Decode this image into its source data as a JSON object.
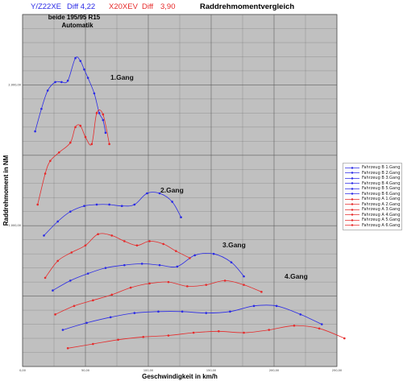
{
  "header": {
    "left_a": "Y/Z22XE",
    "left_b": "Diff 4,22",
    "mid_a": "X20XEV",
    "mid_b": "Diff",
    "mid_c": "3,90",
    "title": "Raddrehmomentvergleich"
  },
  "colors": {
    "blue": "#2a2ae6",
    "red": "#e62a2a",
    "plot_bg": "#c0c0c0",
    "grid": "#555555"
  },
  "chart_data": {
    "type": "line",
    "title": "Raddrehmomentvergleich",
    "subtitle": "beide 195/95 R15\nAutomatik",
    "xlabel": "Geschwindigkeit in km/h",
    "ylabel": "Raddrehmoment in NM",
    "xlim": [
      0,
      250
    ],
    "ylim": [
      0,
      2500
    ],
    "xticks": [
      "0,00",
      "50,00",
      "100,00",
      "150,00",
      "200,00",
      "250,00"
    ],
    "yticks": [
      "1.000,00",
      "2.000,00"
    ],
    "grid": true,
    "legend_position": "right",
    "annotations": [
      "1.Gang",
      "2.Gang",
      "3.Gang",
      "4.Gang"
    ],
    "series": [
      {
        "name": "Fahrzeug B 1.Gang",
        "color": "blue",
        "x": [
          10,
          15,
          20,
          26,
          31,
          36,
          42,
          46,
          49,
          52,
          57,
          61,
          64,
          66
        ],
        "y": [
          1670,
          1830,
          1960,
          2020,
          2020,
          2030,
          2190,
          2170,
          2110,
          2050,
          1940,
          1800,
          1750,
          1660
        ]
      },
      {
        "name": "Fahrzeug B 2.Gang",
        "color": "blue",
        "x": [
          17,
          28,
          38,
          49,
          59,
          69,
          79,
          89,
          99,
          109,
          119,
          126
        ],
        "y": [
          930,
          1030,
          1100,
          1140,
          1150,
          1150,
          1140,
          1150,
          1230,
          1230,
          1170,
          1060
        ]
      },
      {
        "name": "Fahrzeug B 3.Gang",
        "color": "blue",
        "x": [
          24,
          38,
          52,
          66,
          81,
          95,
          109,
          123,
          137,
          152,
          166,
          176
        ],
        "y": [
          540,
          610,
          660,
          700,
          720,
          730,
          720,
          710,
          790,
          800,
          740,
          640
        ]
      },
      {
        "name": "Fahrzeug B 4.Gang",
        "color": "blue",
        "x": [
          32,
          51,
          70,
          89,
          108,
          127,
          146,
          165,
          184,
          202,
          221,
          238
        ],
        "y": [
          260,
          310,
          350,
          380,
          390,
          390,
          380,
          390,
          430,
          430,
          370,
          300
        ]
      },
      {
        "name": "Fahrzeug A 1.Gang",
        "color": "red",
        "x": [
          12,
          18,
          22,
          29,
          38,
          42,
          46,
          50,
          55,
          59,
          64,
          69
        ],
        "y": [
          1150,
          1370,
          1460,
          1520,
          1590,
          1700,
          1710,
          1630,
          1580,
          1800,
          1790,
          1580
        ]
      },
      {
        "name": "Fahrzeug A 2.Gang",
        "color": "red",
        "x": [
          18,
          28,
          39,
          50,
          60,
          71,
          81,
          91,
          101,
          112,
          122,
          133
        ],
        "y": [
          630,
          750,
          810,
          860,
          940,
          930,
          890,
          860,
          890,
          870,
          820,
          770
        ]
      },
      {
        "name": "Fahrzeug A 3.Gang",
        "color": "red",
        "x": [
          26,
          41,
          56,
          71,
          86,
          101,
          116,
          131,
          146,
          161,
          176,
          190
        ],
        "y": [
          370,
          430,
          470,
          510,
          560,
          590,
          600,
          570,
          580,
          610,
          580,
          530
        ]
      },
      {
        "name": "Fahrzeug A 4.Gang",
        "color": "red",
        "x": [
          36,
          56,
          76,
          96,
          116,
          136,
          156,
          176,
          196,
          216,
          236,
          256
        ],
        "y": [
          130,
          160,
          190,
          210,
          220,
          240,
          250,
          240,
          260,
          290,
          270,
          200
        ]
      }
    ]
  },
  "legend": {
    "items": [
      {
        "label": "Fahrzeug B 1.Gang",
        "color": "blue"
      },
      {
        "label": "Fahrzeug B 2.Gang",
        "color": "blue"
      },
      {
        "label": "Fahrzeug B 3.Gang",
        "color": "blue"
      },
      {
        "label": "Fahrzeug B 4.Gang",
        "color": "blue"
      },
      {
        "label": "Fahrzeug B 5.Gang",
        "color": "blue"
      },
      {
        "label": "Fahrzeug B 6.Gang",
        "color": "blue"
      },
      {
        "label": "Fahrzeug A 1.Gang",
        "color": "red"
      },
      {
        "label": "Fahrzeug A 2.Gang",
        "color": "red"
      },
      {
        "label": "Fahrzeug A 3.Gang",
        "color": "red"
      },
      {
        "label": "Fahrzeug A 4.Gang",
        "color": "red"
      },
      {
        "label": "Fahrzeug A 5.Gang",
        "color": "red"
      },
      {
        "label": "Fahrzeug A 6.Gang",
        "color": "red"
      }
    ]
  }
}
